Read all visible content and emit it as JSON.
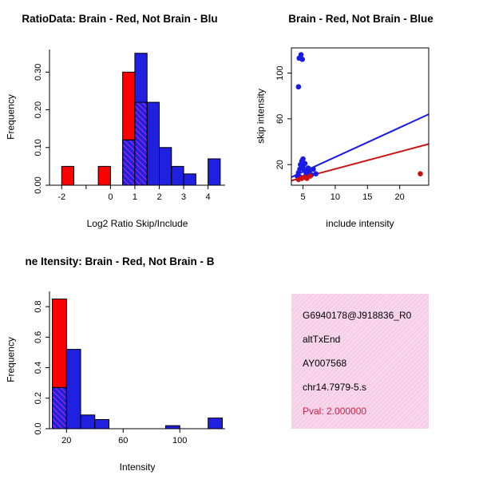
{
  "info_box": {
    "background_primary": "#f8d7ec",
    "background_stripe": "#f2c6e2",
    "lines": [
      {
        "text": "G6940178@J918836_R0",
        "color": "#000000"
      },
      {
        "text": "altTxEnd",
        "color": "#000000"
      },
      {
        "text": "AY007568",
        "color": "#000000"
      },
      {
        "text": "chr14.7979-5.s",
        "color": "#000000"
      },
      {
        "text": "Pval: 2.000000",
        "color": "#cc2244"
      }
    ]
  },
  "chart_data": [
    {
      "type": "bar",
      "title": "RatioData: Brain - Red, Not Brain - Blu",
      "xlabel": "Log2 Ratio Skip/Include",
      "ylabel": "Frequency",
      "xlim": [
        -2.5,
        4.7
      ],
      "ylim": [
        0,
        0.36
      ],
      "bin_width": 0.5,
      "x_ticks": [
        {
          "v": -2,
          "label": "-2"
        },
        {
          "v": -1,
          "label": ""
        },
        {
          "v": 0,
          "label": "0"
        },
        {
          "v": 1,
          "label": "1"
        },
        {
          "v": 2,
          "label": "2"
        },
        {
          "v": 3,
          "label": "3"
        },
        {
          "v": 4,
          "label": "4"
        }
      ],
      "y_ticks": [
        {
          "v": 0,
          "label": "0.00"
        },
        {
          "v": 0.1,
          "label": "0.10"
        },
        {
          "v": 0.2,
          "label": "0.20"
        },
        {
          "v": 0.3,
          "label": "0.30"
        }
      ],
      "series": [
        {
          "name": "Brain",
          "color": "#ff0000",
          "bins": [
            {
              "x0": -2.0,
              "h": 0.05
            },
            {
              "x0": -0.5,
              "h": 0.05
            },
            {
              "x0": 0.5,
              "h": 0.3
            },
            {
              "x0": 1.0,
              "h": 0.22
            }
          ]
        },
        {
          "name": "Not Brain",
          "color": "#2020e0",
          "bins": [
            {
              "x0": 0.5,
              "h": 0.12
            },
            {
              "x0": 1.0,
              "h": 0.35
            },
            {
              "x0": 1.5,
              "h": 0.22
            },
            {
              "x0": 2.0,
              "h": 0.1
            },
            {
              "x0": 2.5,
              "h": 0.05
            },
            {
              "x0": 3.0,
              "h": 0.03
            },
            {
              "x0": 4.0,
              "h": 0.07
            }
          ]
        }
      ]
    },
    {
      "type": "scatter",
      "title": "Brain - Red, Not Brain - Blue",
      "xlabel": "include intensity",
      "ylabel": "skip intensity",
      "xlim": [
        3.2,
        24.5
      ],
      "ylim": [
        2,
        122
      ],
      "x_ticks": [
        {
          "v": 5,
          "label": "5"
        },
        {
          "v": 10,
          "label": "10"
        },
        {
          "v": 15,
          "label": "15"
        },
        {
          "v": 20,
          "label": "20"
        }
      ],
      "y_ticks": [
        {
          "v": 20,
          "label": "20"
        },
        {
          "v": 60,
          "label": "60"
        },
        {
          "v": 100,
          "label": "100"
        }
      ],
      "series": [
        {
          "name": "Not Brain",
          "color": "#1a1ae6",
          "points": [
            [
              4.4,
              113
            ],
            [
              4.7,
              116
            ],
            [
              4.9,
              112
            ],
            [
              4.3,
              88
            ],
            [
              4.1,
              10
            ],
            [
              4.3,
              13
            ],
            [
              4.5,
              16
            ],
            [
              4.6,
              20
            ],
            [
              4.8,
              23
            ],
            [
              5.0,
              25
            ],
            [
              5.0,
              18
            ],
            [
              5.2,
              15
            ],
            [
              5.3,
              21
            ],
            [
              5.5,
              12
            ],
            [
              5.8,
              17
            ],
            [
              6.0,
              14
            ],
            [
              6.3,
              11
            ],
            [
              6.6,
              16
            ],
            [
              7.0,
              12
            ],
            [
              4.6,
              9
            ]
          ]
        },
        {
          "name": "Brain",
          "color": "#cc1111",
          "points": [
            [
              4.3,
              7
            ],
            [
              4.8,
              8
            ],
            [
              5.2,
              9
            ],
            [
              5.6,
              8
            ],
            [
              6.1,
              10
            ],
            [
              23.2,
              12
            ]
          ]
        }
      ],
      "fit_lines": [
        {
          "name": "not-brain-fit-line",
          "color": "#1a1ae6",
          "x1": 3.2,
          "y1": 9,
          "x2": 24.5,
          "y2": 64
        },
        {
          "name": "brain-fit-line",
          "color": "#cc1111",
          "x1": 3.2,
          "y1": 6,
          "x2": 24.5,
          "y2": 38
        }
      ]
    },
    {
      "type": "bar",
      "title": "ne Itensity: Brain - Red, Not Brain - B",
      "xlabel": "Intensity",
      "ylabel": "Frequency",
      "xlim": [
        8,
        132
      ],
      "ylim": [
        0,
        0.9
      ],
      "bin_width": 10,
      "x_ticks": [
        {
          "v": 20,
          "label": "20"
        },
        {
          "v": 60,
          "label": "60"
        },
        {
          "v": 100,
          "label": "100"
        }
      ],
      "y_ticks": [
        {
          "v": 0,
          "label": "0.0"
        },
        {
          "v": 0.2,
          "label": "0.2"
        },
        {
          "v": 0.4,
          "label": "0.4"
        },
        {
          "v": 0.6,
          "label": "0.6"
        },
        {
          "v": 0.8,
          "label": "0.8"
        }
      ],
      "series": [
        {
          "name": "Brain",
          "color": "#ff0000",
          "bins": [
            {
              "x0": 10,
              "h": 0.85
            }
          ]
        },
        {
          "name": "Not Brain",
          "color": "#2020e0",
          "bins": [
            {
              "x0": 10,
              "h": 0.27
            },
            {
              "x0": 20,
              "h": 0.52
            },
            {
              "x0": 30,
              "h": 0.09
            },
            {
              "x0": 40,
              "h": 0.06
            },
            {
              "x0": 90,
              "h": 0.02
            },
            {
              "x0": 120,
              "h": 0.07
            }
          ]
        }
      ]
    }
  ]
}
